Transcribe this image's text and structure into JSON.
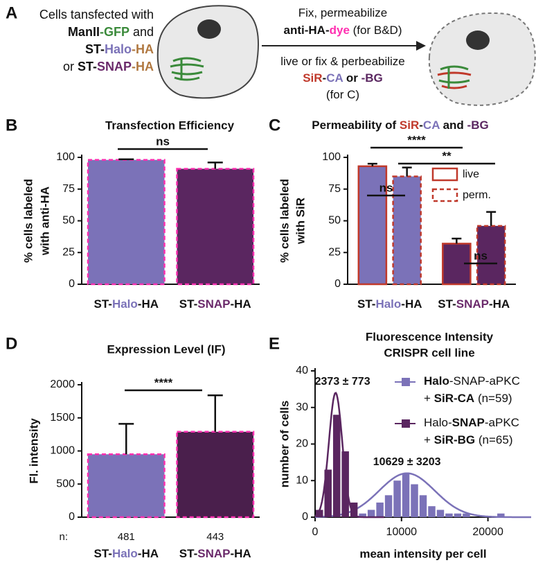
{
  "panel_a": {
    "letter": "A",
    "left_lines": [
      [
        {
          "text": "Cells tansfected with",
          "bold": false
        }
      ],
      [
        {
          "text": "ManII"
        },
        {
          "text": "-GFP",
          "color": "#3a8a3a"
        },
        {
          "text": " and",
          "bold": false
        }
      ],
      [
        {
          "text": "ST-"
        },
        {
          "text": "Halo",
          "color": "#7b72b8"
        },
        {
          "text": "-HA",
          "color": "#b07840"
        }
      ],
      [
        {
          "text": "or ",
          "bold": false
        },
        {
          "text": "ST-"
        },
        {
          "text": "SNAP",
          "color": "#6b2a6b"
        },
        {
          "text": "-HA",
          "color": "#b07840"
        }
      ]
    ],
    "top_lines": [
      [
        {
          "text": "Fix, permeabilize",
          "bold": false
        }
      ],
      [
        {
          "text": "anti-HA-"
        },
        {
          "text": "dye",
          "color": "#ff2fb0"
        },
        {
          "text": " (for B&D)",
          "bold": false
        }
      ]
    ],
    "bottom_lines": [
      [
        {
          "text": "live or fix & perbeabilize",
          "bold": false
        }
      ],
      [
        {
          "text": "SiR",
          "color": "#c0392b"
        },
        {
          "text": "-"
        },
        {
          "text": "CA",
          "color": "#7b72b8"
        },
        {
          "text": " or "
        },
        {
          "text": "-BG",
          "color": "#5a2660"
        }
      ],
      [
        {
          "text": "(for C)",
          "bold": false
        }
      ]
    ]
  },
  "chart_data": [
    {
      "type": "bar",
      "panel": "B",
      "title": "Transfection Efficiency",
      "ylabel": [
        "% cells labeled",
        "with anti-HA"
      ],
      "categories": [
        [
          {
            "text": "ST-"
          },
          {
            "text": "Halo",
            "color": "#7b72b8"
          },
          {
            "text": "-HA"
          }
        ],
        [
          {
            "text": "ST-"
          },
          {
            "text": "SNAP",
            "color": "#6b2a6b"
          },
          {
            "text": "-HA"
          }
        ]
      ],
      "series": [
        {
          "colors": [
            "#7b72b8",
            "#5a2660"
          ],
          "edge_color": "#ff2fb0",
          "edge_style": "dashed",
          "values": [
            98,
            91
          ],
          "errors": [
            0.5,
            5
          ]
        }
      ],
      "ylim": [
        0,
        100
      ],
      "yticks": [
        0,
        25,
        50,
        75,
        100
      ],
      "annotations": [
        "ns"
      ]
    },
    {
      "type": "bar",
      "panel": "C",
      "title": [
        {
          "text": "Permeability of "
        },
        {
          "text": "SiR",
          "color": "#c0392b"
        },
        {
          "text": "-"
        },
        {
          "text": "CA",
          "color": "#7b72b8"
        },
        {
          "text": " and "
        },
        {
          "text": "-BG",
          "color": "#5a2660"
        }
      ],
      "ylabel": [
        "% cells labeled",
        "with SiR"
      ],
      "categories": [
        [
          {
            "text": "ST-"
          },
          {
            "text": "Halo",
            "color": "#7b72b8"
          },
          {
            "text": "-HA"
          }
        ],
        [
          {
            "text": "ST-"
          },
          {
            "text": "SNAP",
            "color": "#6b2a6b"
          },
          {
            "text": "-HA"
          }
        ]
      ],
      "series": [
        {
          "name": "live",
          "colors": [
            "#7b72b8",
            "#5a2660"
          ],
          "edge_color": "#c0392b",
          "edge_style": "solid",
          "values": [
            93,
            32
          ],
          "errors": [
            2,
            4
          ]
        },
        {
          "name": "perm.",
          "colors": [
            "#7b72b8",
            "#5a2660"
          ],
          "edge_color": "#c0392b",
          "edge_style": "dashed",
          "values": [
            85,
            46
          ],
          "errors": [
            7,
            11
          ]
        }
      ],
      "legend": true,
      "ylim": [
        0,
        100
      ],
      "yticks": [
        0,
        25,
        50,
        75,
        100
      ],
      "annotations": [
        "****",
        "**",
        "ns",
        "ns"
      ]
    },
    {
      "type": "bar",
      "panel": "D",
      "title": "Expression Level (IF)",
      "ylabel": [
        "Fl. intensity"
      ],
      "categories": [
        [
          {
            "text": "ST-"
          },
          {
            "text": "Halo",
            "color": "#7b72b8"
          },
          {
            "text": "-HA"
          }
        ],
        [
          {
            "text": "ST-"
          },
          {
            "text": "SNAP",
            "color": "#6b2a6b"
          },
          {
            "text": "-HA"
          }
        ]
      ],
      "series": [
        {
          "colors": [
            "#7b72b8",
            "#4a1f4c"
          ],
          "edge_color": "#ff2fb0",
          "edge_style": "dashed",
          "values": [
            950,
            1290
          ],
          "errors": [
            460,
            550
          ]
        }
      ],
      "ylim": [
        0,
        2000
      ],
      "yticks": [
        0,
        500,
        1000,
        1500,
        2000
      ],
      "annotations": [
        "****"
      ],
      "n_label": "n:",
      "n_values": [
        481,
        443
      ]
    },
    {
      "type": "histogram",
      "panel": "E",
      "title": "Fluorescence Intensity",
      "subtitle": "CRISPR cell line",
      "xlabel": "mean intensity per cell",
      "ylabel": "number of cells",
      "xlim": [
        0,
        25000
      ],
      "xticks": [
        0,
        10000,
        20000
      ],
      "ylim": [
        0,
        40
      ],
      "yticks": [
        0,
        10,
        20,
        30,
        40
      ],
      "series": [
        {
          "name": [
            [
              {
                "text": "Halo"
              },
              {
                "text": "-SNAP-aPKC",
                "bold": false
              }
            ],
            [
              {
                "text": "+ ",
                "bold": false
              },
              {
                "text": "SiR-CA"
              },
              {
                "text": " (n=59)",
                "bold": false
              }
            ]
          ],
          "color": "#7b72b8",
          "bins": [
            5000,
            6000,
            7000,
            8000,
            9000,
            10000,
            11000,
            12000,
            13000,
            14000,
            15000,
            16000,
            17000,
            18000,
            19000,
            20000,
            21000,
            22000
          ],
          "counts": [
            1,
            2,
            4,
            6,
            10,
            12,
            9,
            6,
            3,
            2,
            1,
            1,
            1,
            0,
            0,
            0,
            1
          ],
          "fit": {
            "label": "10629 ± 3203",
            "mean": 10629,
            "sd": 3203,
            "peak": 12
          }
        },
        {
          "name": [
            [
              {
                "text": "Halo-",
                "bold": false
              },
              {
                "text": "SNAP"
              },
              {
                "text": "-aPKC",
                "bold": false
              }
            ],
            [
              {
                "text": "+ ",
                "bold": false
              },
              {
                "text": "SiR-BG"
              },
              {
                "text": " (n=65)",
                "bold": false
              }
            ]
          ],
          "color": "#5a2660",
          "bins": [
            0,
            1000,
            2000,
            3000,
            4000,
            5000
          ],
          "counts": [
            2,
            13,
            28,
            18,
            4
          ],
          "fit": {
            "label": "2373 ± 773",
            "mean": 2373,
            "sd": 773,
            "peak": 34
          }
        }
      ]
    }
  ]
}
